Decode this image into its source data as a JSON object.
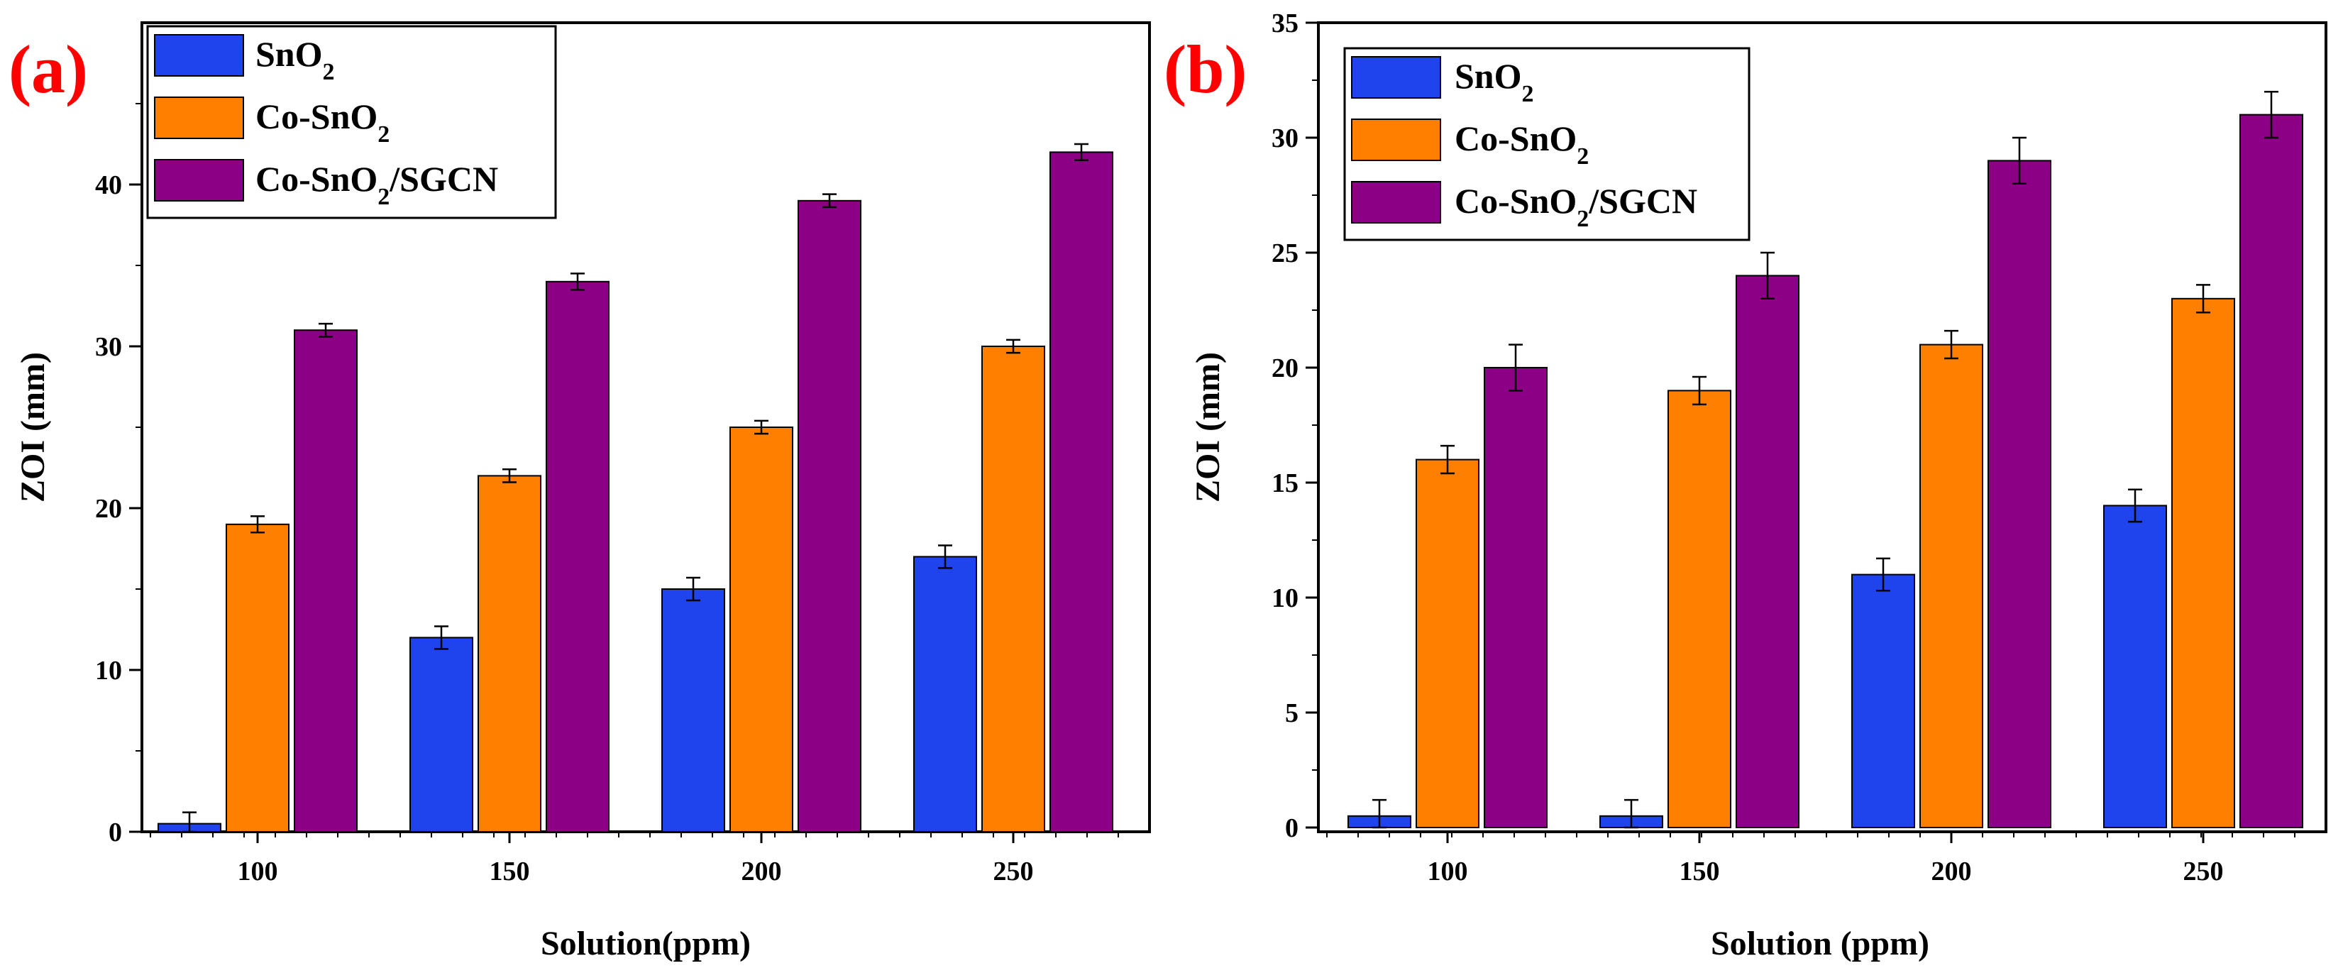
{
  "chart_data": [
    {
      "panel_label": "(a)",
      "type": "bar",
      "categories": [
        "100",
        "150",
        "200",
        "250"
      ],
      "series": [
        {
          "name": "SnO2",
          "color": "#1f44ee",
          "values": [
            0.5,
            12,
            15,
            17
          ],
          "errors": [
            0.7,
            0.7,
            0.7,
            0.7
          ]
        },
        {
          "name": "Co-SnO2",
          "color": "#ff8000",
          "values": [
            19,
            22,
            25,
            30
          ],
          "errors": [
            0.5,
            0.4,
            0.4,
            0.4
          ]
        },
        {
          "name": "Co-SnO2/SGCN",
          "color": "#8b0085",
          "values": [
            31,
            34,
            39,
            42
          ],
          "errors": [
            0.4,
            0.5,
            0.4,
            0.5
          ]
        }
      ],
      "title": "",
      "xlabel": "Solution(ppm)",
      "ylabel": "ZOI (mm)",
      "ylim": [
        0,
        50
      ],
      "yticks": [
        0,
        10,
        20,
        30,
        40
      ],
      "legend_position": "top-left",
      "grid": false
    },
    {
      "panel_label": "(b)",
      "type": "bar",
      "categories": [
        "100",
        "150",
        "200",
        "250"
      ],
      "series": [
        {
          "name": "SnO2",
          "color": "#1f44ee",
          "values": [
            0.5,
            0.5,
            11,
            14
          ],
          "errors": [
            0.7,
            0.7,
            0.7,
            0.7
          ]
        },
        {
          "name": "Co-SnO2",
          "color": "#ff8000",
          "values": [
            16,
            19,
            21,
            23
          ],
          "errors": [
            0.6,
            0.6,
            0.6,
            0.6
          ]
        },
        {
          "name": "Co-SnO2/SGCN",
          "color": "#8b0085",
          "values": [
            20,
            24,
            29,
            31
          ],
          "errors": [
            1.0,
            1.0,
            1.0,
            1.0
          ]
        }
      ],
      "title": "",
      "xlabel": "Solution (ppm)",
      "ylabel": "ZOI (mm)",
      "ylim": [
        0,
        35
      ],
      "yticks": [
        0,
        5,
        10,
        15,
        20,
        25,
        30,
        35
      ],
      "legend_position": "top-left",
      "grid": false
    }
  ],
  "label_color": "#ff0000"
}
